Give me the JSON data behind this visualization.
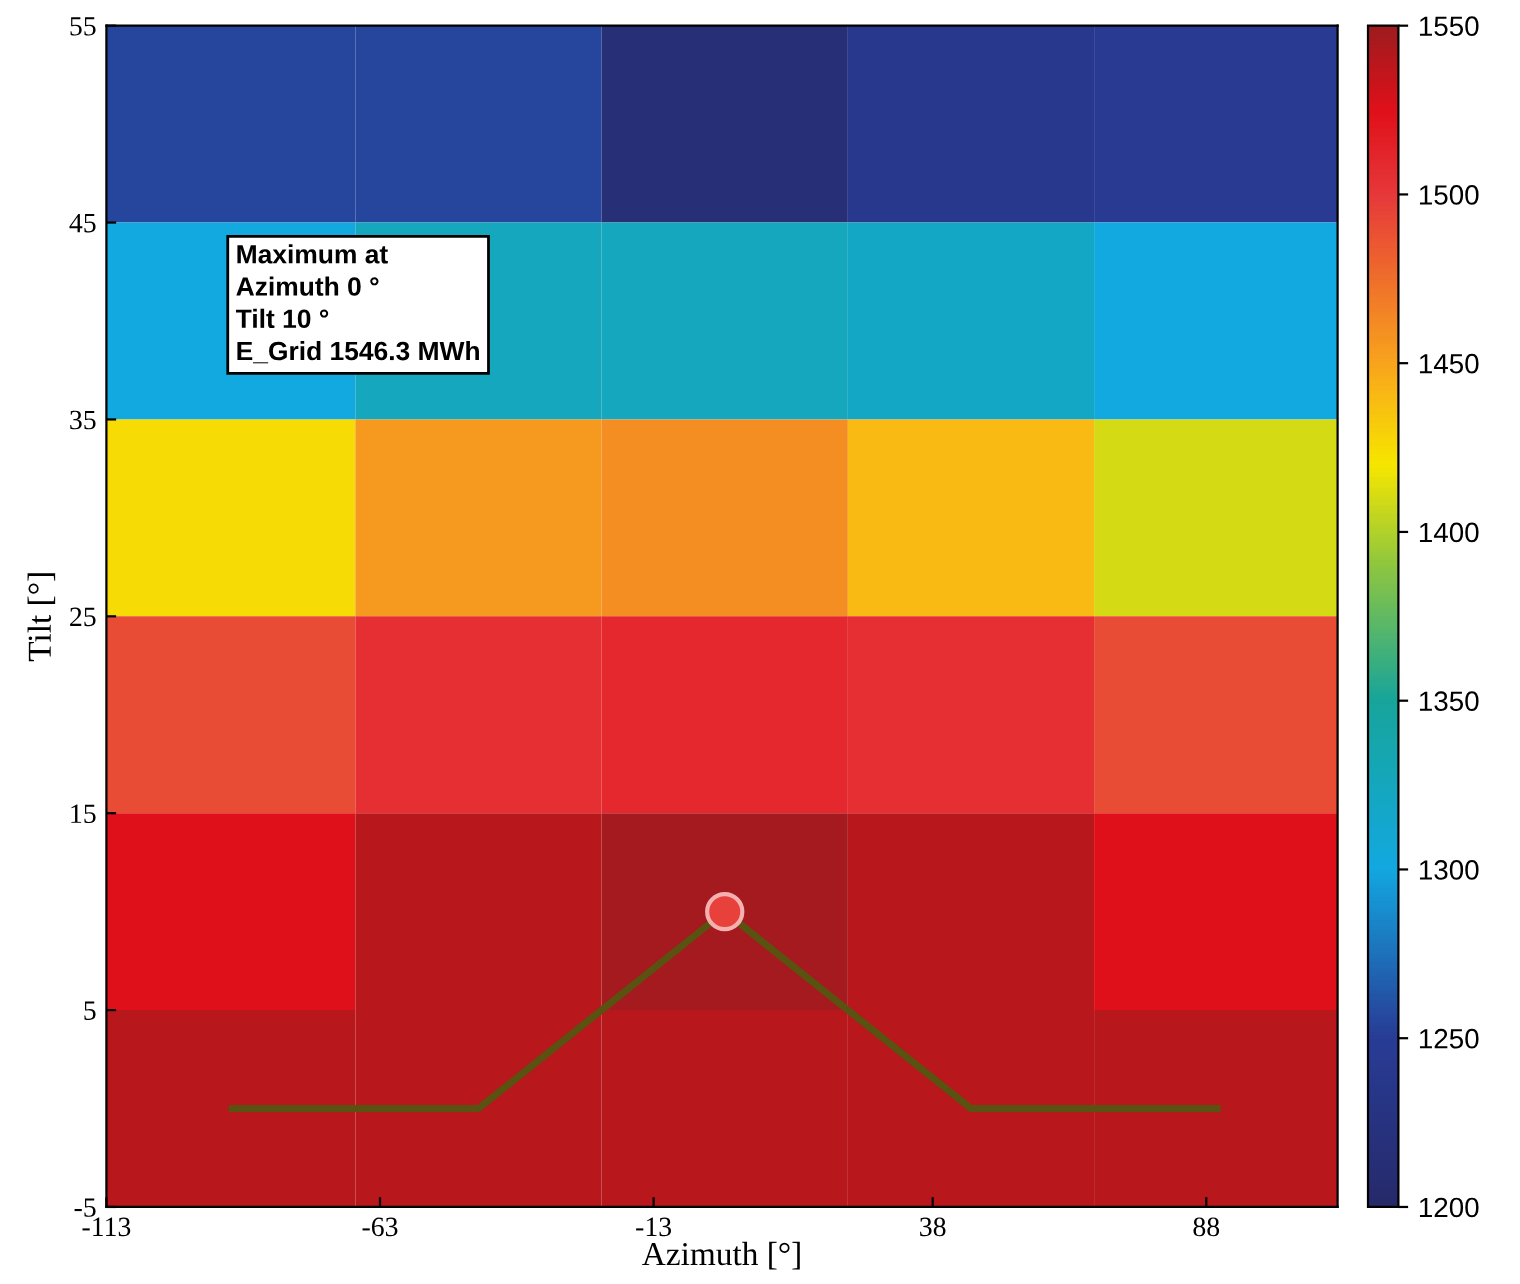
{
  "chart_data": {
    "type": "heatmap",
    "xlabel": "Azimuth [°]",
    "ylabel": "Tilt [°]",
    "x": [
      -90,
      -45,
      0,
      45,
      90
    ],
    "y": [
      50,
      40,
      30,
      20,
      10,
      0
    ],
    "cells": [
      [
        1255,
        1255,
        1215,
        1240,
        1245
      ],
      [
        1300,
        1325,
        1325,
        1320,
        1300
      ],
      [
        1425,
        1455,
        1460,
        1440,
        1410
      ],
      [
        1490,
        1505,
        1510,
        1505,
        1490
      ],
      [
        1525,
        1540,
        1546.3,
        1540,
        1525
      ],
      [
        1540,
        1540,
        1540,
        1540,
        1540
      ]
    ],
    "clim": [
      1200,
      1550
    ],
    "cticks": [
      1200,
      1250,
      1300,
      1350,
      1400,
      1450,
      1500,
      1550
    ],
    "xlim": [
      -113,
      112
    ],
    "xticks": [
      -113,
      -63,
      -13,
      38,
      88
    ],
    "ylim": [
      -5,
      55
    ],
    "yticks": [
      -5,
      5,
      15,
      25,
      35,
      45,
      55
    ],
    "series": [
      {
        "type": "line",
        "color": "#5a5210",
        "x": [
          -90,
          -45,
          0,
          45,
          90
        ],
        "values": [
          0,
          0,
          10,
          0,
          0
        ]
      },
      {
        "type": "scatter",
        "color": "#e8403a",
        "marker": "circle",
        "x": [
          0
        ],
        "values": [
          10
        ]
      }
    ],
    "annotations": [
      "Maximum at\nAzimuth 0 °\nTilt 10 °\nE_Grid 1546.3 MWh"
    ],
    "grid": false,
    "legend": false
  }
}
